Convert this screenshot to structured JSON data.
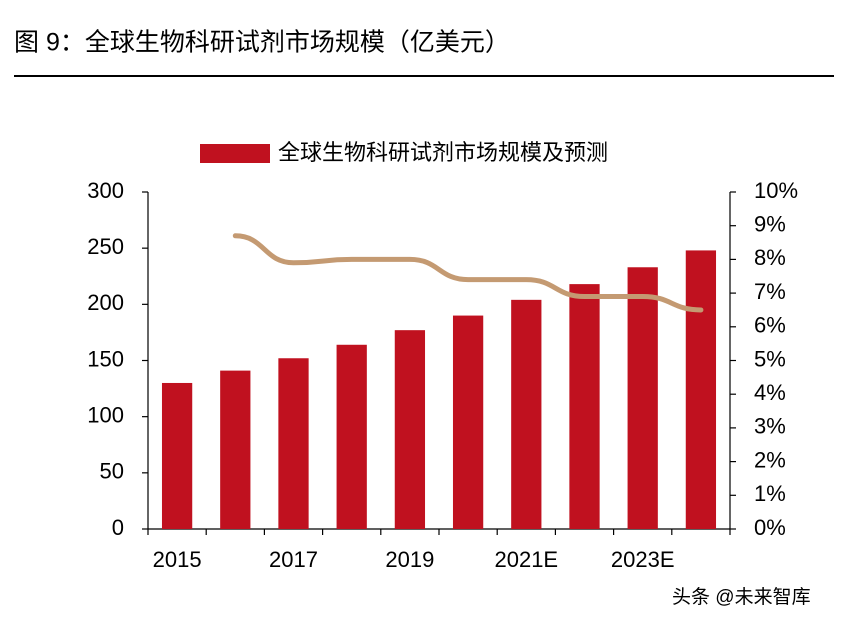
{
  "chart_data": {
    "type": "bar-line",
    "title": "图 9：全球生物科研试剂市场规模（亿美元）",
    "watermark": "头条 @未来智库",
    "categories": [
      "2015",
      null,
      "2017",
      null,
      "2019",
      null,
      "2021E",
      null,
      "2023E",
      null
    ],
    "series": [
      {
        "name": "全球生物科研试剂市场规模及预测",
        "type": "bar",
        "color": "#c0111f",
        "values": [
          130,
          141,
          152,
          164,
          177,
          190,
          204,
          218,
          233,
          248
        ]
      },
      {
        "type": "line",
        "axis": "y2",
        "color": "#c49a72",
        "values": [
          null,
          8.7,
          7.9,
          8.0,
          8.0,
          7.4,
          7.4,
          6.9,
          6.9,
          6.5
        ]
      }
    ],
    "ylim": [
      0,
      300
    ],
    "yticks": [
      0,
      50,
      100,
      150,
      200,
      250,
      300
    ],
    "y2lim": [
      0,
      10
    ],
    "y2ticks": [
      {
        "value": 0,
        "label": "0%"
      },
      {
        "value": 1,
        "label": "1%"
      },
      {
        "value": 2,
        "label": "2%"
      },
      {
        "value": 3,
        "label": "3%"
      },
      {
        "value": 4,
        "label": "4%"
      },
      {
        "value": 5,
        "label": "5%"
      },
      {
        "value": 6,
        "label": "6%"
      },
      {
        "value": 7,
        "label": "7%"
      },
      {
        "value": 8,
        "label": "8%"
      },
      {
        "value": 9,
        "label": "9%"
      },
      {
        "value": 10,
        "label": "10%"
      }
    ],
    "grid": false,
    "legend": "top"
  }
}
